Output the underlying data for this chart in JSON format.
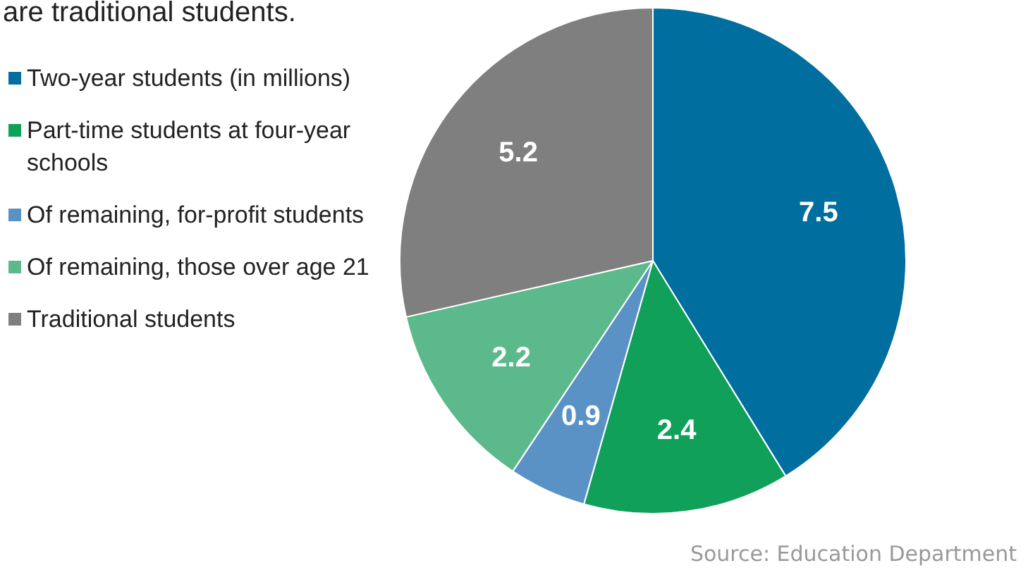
{
  "chart_data": {
    "type": "pie",
    "title": "are traditional students.",
    "categories": [
      "Two-year students (in millions)",
      "Part-time students at four-year schools",
      "Of remaining, for-profit students",
      "Of remaining, those over age 21",
      "Traditional students"
    ],
    "values": [
      7.5,
      2.4,
      0.9,
      2.2,
      5.2
    ],
    "colors": [
      "#006e9f",
      "#10a05a",
      "#5a92c6",
      "#5cb98c",
      "#7f7f7f"
    ],
    "data_labels": true,
    "legend": "left",
    "annotations": [
      "Source: Education Department"
    ]
  }
}
